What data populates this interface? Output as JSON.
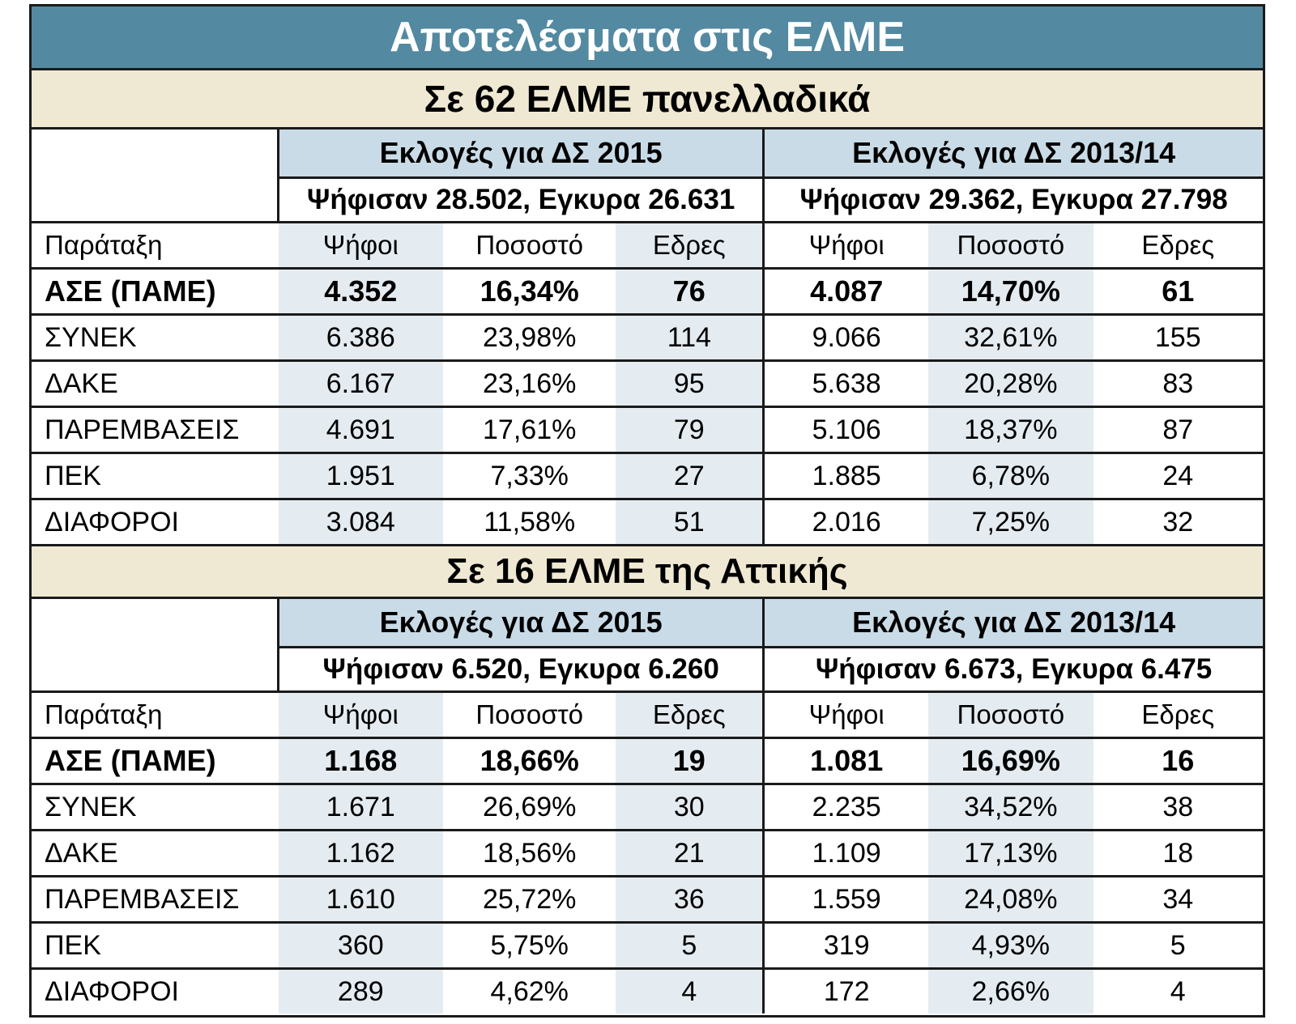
{
  "title": "Αποτελέσματα στις ΕΛΜΕ",
  "sections": [
    {
      "heading": "Σε 62 ΕΛΜΕ πανελλαδικά",
      "elections": [
        {
          "label": "Εκλογές για ΔΣ 2015",
          "turnout": "Ψήφισαν 28.502, Εγκυρα 26.631"
        },
        {
          "label": "Εκλογές για ΔΣ 2013/14",
          "turnout": "Ψήφισαν 29.362, Εγκυρα 27.798"
        }
      ],
      "header": [
        "Παράταξη",
        "Ψήφοι",
        "Ποσοστό",
        "Εδρες",
        "Ψήφοι",
        "Ποσοστό",
        "Εδρες"
      ],
      "rows": [
        {
          "party": "ΑΣΕ (ΠΑΜΕ)",
          "v1": "4.352",
          "p1": "16,34%",
          "s1": "76",
          "v2": "4.087",
          "p2": "14,70%",
          "s2": "61"
        },
        {
          "party": "ΣΥΝΕΚ",
          "v1": "6.386",
          "p1": "23,98%",
          "s1": "114",
          "v2": "9.066",
          "p2": "32,61%",
          "s2": "155"
        },
        {
          "party": "ΔΑΚΕ",
          "v1": "6.167",
          "p1": "23,16%",
          "s1": "95",
          "v2": "5.638",
          "p2": "20,28%",
          "s2": "83"
        },
        {
          "party": "ΠΑΡΕΜΒΑΣΕΙΣ",
          "v1": "4.691",
          "p1": "17,61%",
          "s1": "79",
          "v2": "5.106",
          "p2": "18,37%",
          "s2": "87"
        },
        {
          "party": "ΠΕΚ",
          "v1": "1.951",
          "p1": "7,33%",
          "s1": "27",
          "v2": "1.885",
          "p2": "6,78%",
          "s2": "24"
        },
        {
          "party": "ΔΙΑΦΟΡΟΙ",
          "v1": "3.084",
          "p1": "11,58%",
          "s1": "51",
          "v2": "2.016",
          "p2": "7,25%",
          "s2": "32"
        }
      ]
    },
    {
      "heading": "Σε 16 ΕΛΜΕ της Αττικής",
      "elections": [
        {
          "label": "Εκλογές για ΔΣ 2015",
          "turnout": "Ψήφισαν 6.520, Εγκυρα 6.260"
        },
        {
          "label": "Εκλογές για ΔΣ 2013/14",
          "turnout": "Ψήφισαν 6.673, Εγκυρα 6.475"
        }
      ],
      "header": [
        "Παράταξη",
        "Ψήφοι",
        "Ποσοστό",
        "Εδρες",
        "Ψήφοι",
        "Ποσοστό",
        "Εδρες"
      ],
      "rows": [
        {
          "party": "ΑΣΕ (ΠΑΜΕ)",
          "v1": "1.168",
          "p1": "18,66%",
          "s1": "19",
          "v2": "1.081",
          "p2": "16,69%",
          "s2": "16"
        },
        {
          "party": "ΣΥΝΕΚ",
          "v1": "1.671",
          "p1": "26,69%",
          "s1": "30",
          "v2": "2.235",
          "p2": "34,52%",
          "s2": "38"
        },
        {
          "party": "ΔΑΚΕ",
          "v1": "1.162",
          "p1": "18,56%",
          "s1": "21",
          "v2": "1.109",
          "p2": "17,13%",
          "s2": "18"
        },
        {
          "party": "ΠΑΡΕΜΒΑΣΕΙΣ",
          "v1": "1.610",
          "p1": "25,72%",
          "s1": "36",
          "v2": "1.559",
          "p2": "24,08%",
          "s2": "34"
        },
        {
          "party": "ΠΕΚ",
          "v1": "360",
          "p1": "5,75%",
          "s1": "5",
          "v2": "319",
          "p2": "4,93%",
          "s2": "5"
        },
        {
          "party": "ΔΙΑΦΟΡΟΙ",
          "v1": "289",
          "p1": "4,62%",
          "s1": "4",
          "v2": "172",
          "p2": "2,66%",
          "s2": "4"
        }
      ]
    }
  ],
  "colors": {
    "title_bg": "#5389a1",
    "section_bg": "#efe9d3",
    "election_bg": "#c9dbe6",
    "shade": "#e4ecf1"
  }
}
